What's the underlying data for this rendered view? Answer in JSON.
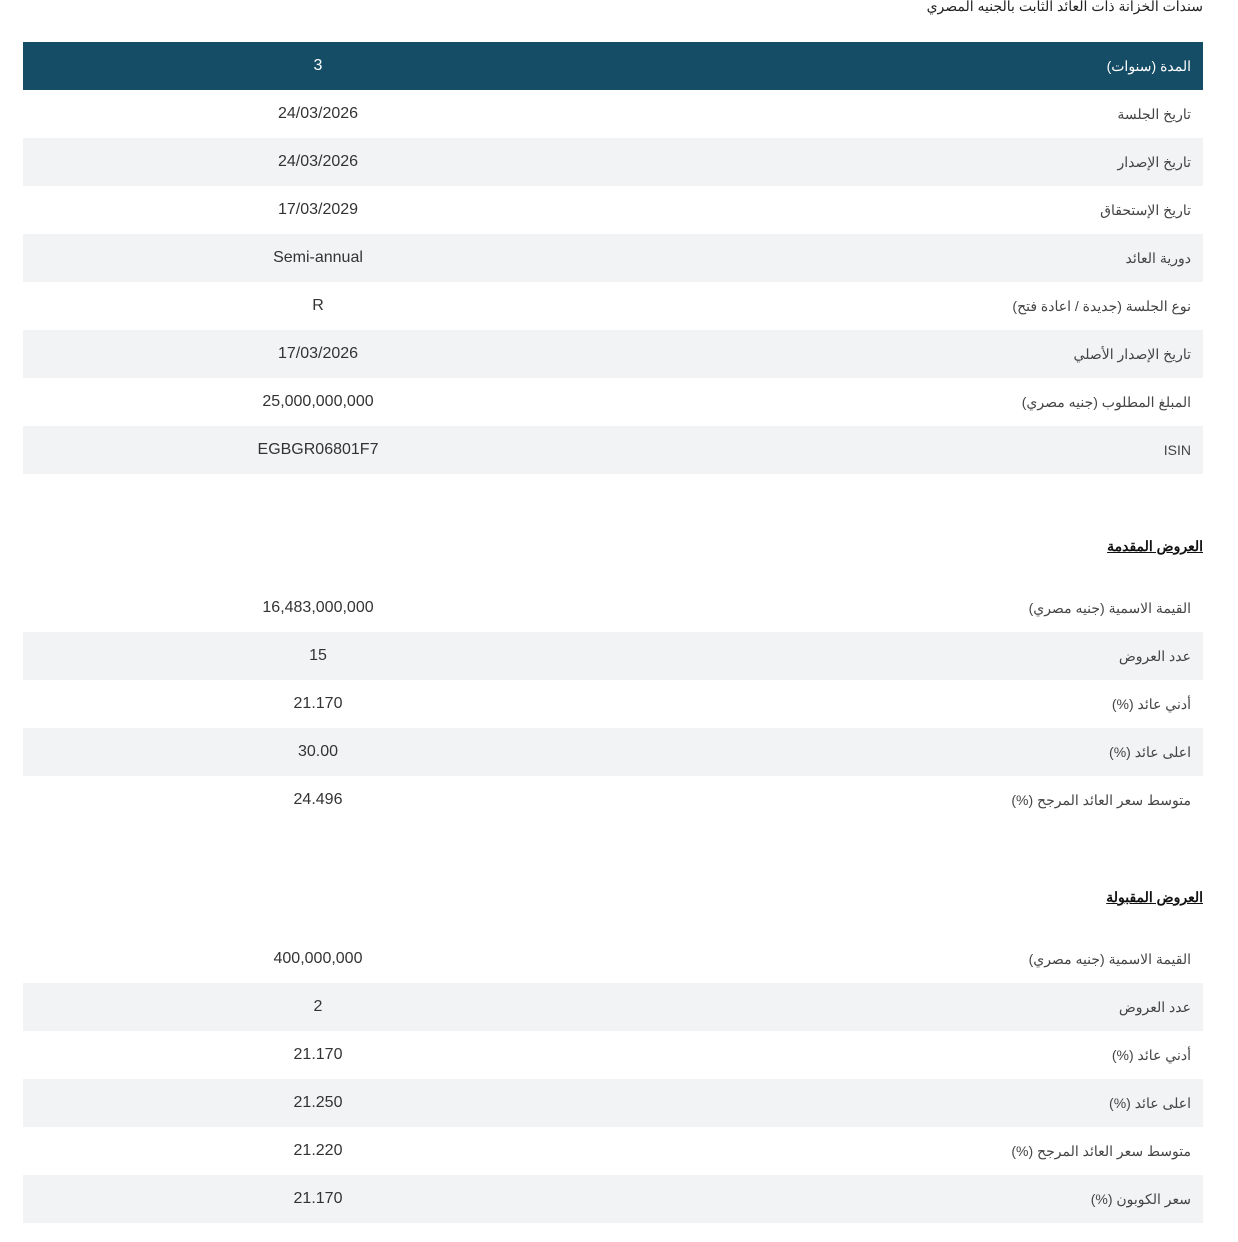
{
  "title": "سندات الخزانة ذات العائد الثابت بالجنيه المصري",
  "details": [
    {
      "label": "المدة (سنوات)",
      "value": "3"
    },
    {
      "label": "تاريخ الجلسة",
      "value": "24/03/2026"
    },
    {
      "label": "تاريخ الإصدار",
      "value": "24/03/2026"
    },
    {
      "label": "تاريخ الإستحقاق",
      "value": "17/03/2029"
    },
    {
      "label": "دورية العائد",
      "value": "Semi-annual"
    },
    {
      "label": "نوع الجلسة (جديدة / اعادة فتح)",
      "value": "R"
    },
    {
      "label": "تاريخ الإصدار الأصلي",
      "value": "17/03/2026"
    },
    {
      "label": "المبلغ المطلوب (جنيه مصري)",
      "value": "25,000,000,000"
    },
    {
      "label": "ISIN",
      "value": "EGBGR06801F7"
    }
  ],
  "submitted": {
    "heading": "العروض المقدمة",
    "rows": [
      {
        "label": "القيمة الاسمية (جنيه مصري)",
        "value": "16,483,000,000"
      },
      {
        "label": "عدد العروض",
        "value": "15"
      },
      {
        "label": "أدني عائد (%)",
        "value": "21.170"
      },
      {
        "label": "اعلى عائد (%)",
        "value": "30.00"
      },
      {
        "label": "متوسط سعر العائد المرجح (%)",
        "value": "24.496"
      }
    ]
  },
  "accepted": {
    "heading": "العروض المقبولة",
    "rows": [
      {
        "label": "القيمة الاسمية (جنيه مصري)",
        "value": "400,000,000"
      },
      {
        "label": "عدد العروض",
        "value": "2"
      },
      {
        "label": "أدني عائد (%)",
        "value": "21.170"
      },
      {
        "label": "اعلى عائد (%)",
        "value": "21.250"
      },
      {
        "label": "متوسط سعر العائد المرجح (%)",
        "value": "21.220"
      },
      {
        "label": "سعر الكوبون (%)",
        "value": "21.170"
      }
    ]
  },
  "colors": {
    "header": "#164d66",
    "stripe": "#f2f3f4"
  }
}
